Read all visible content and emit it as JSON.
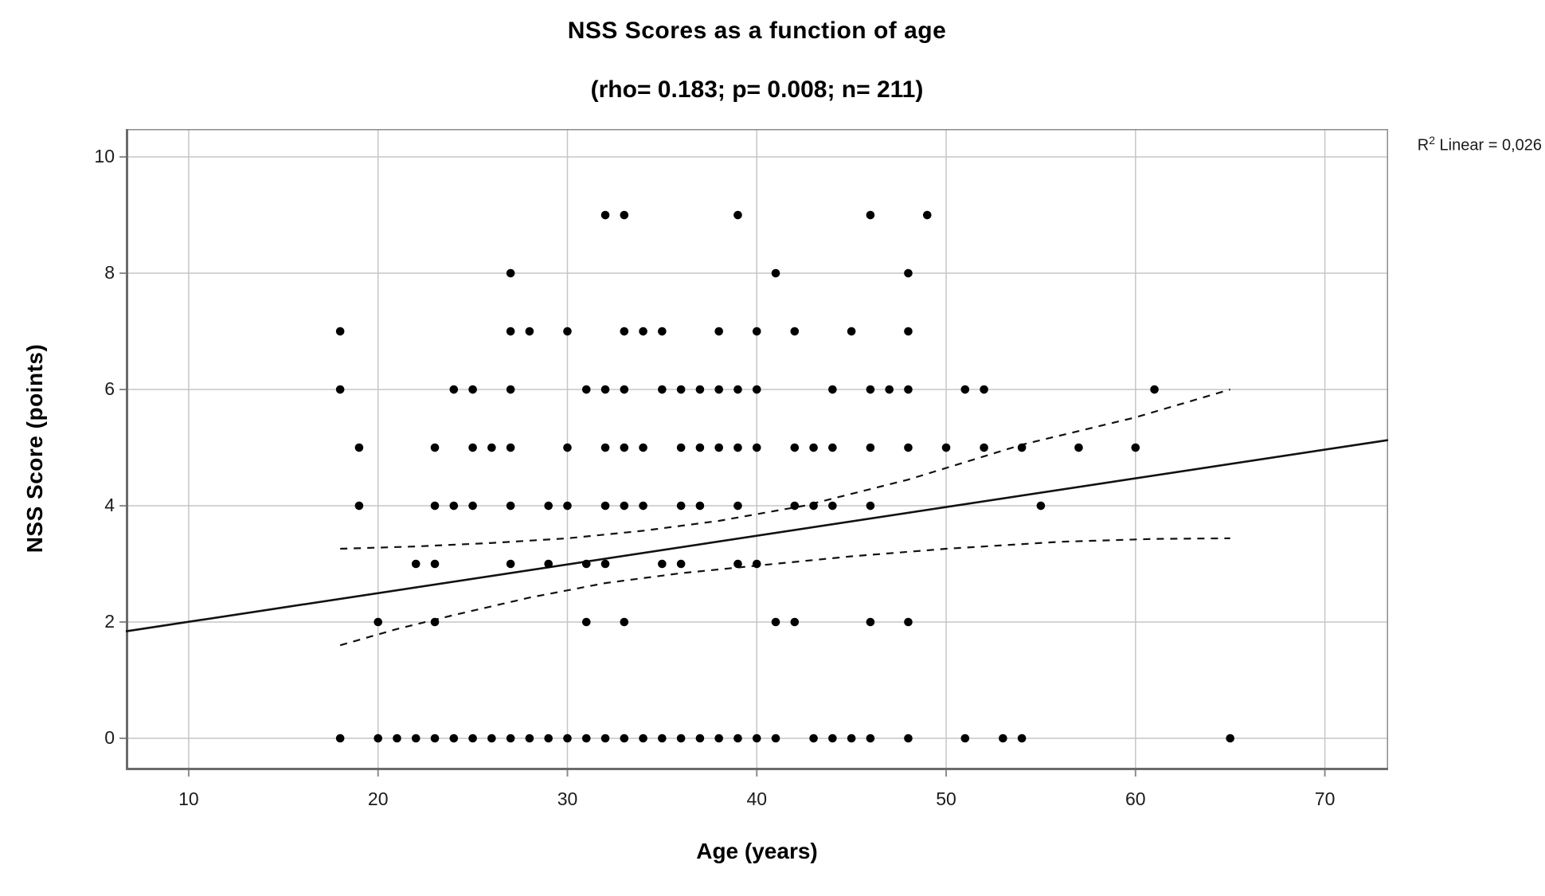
{
  "title": "NSS Scores as a function of age",
  "subtitle": "(rho= 0.183; p= 0.008; n= 211)",
  "annotation": {
    "prefix": "R",
    "sup": "2",
    "rest": " Linear = 0,026"
  },
  "chart_data": {
    "type": "scatter",
    "title": "NSS Scores as a function of age",
    "subtitle": "(rho= 0.183; p= 0.008; n= 211)",
    "xlabel": "Age (years)",
    "ylabel": "NSS Score (points)",
    "x_ticks": [
      10,
      20,
      30,
      40,
      50,
      60,
      70
    ],
    "y_ticks": [
      0,
      2,
      4,
      6,
      8,
      10
    ],
    "xlim": [
      6.68,
      73.34
    ],
    "ylim": [
      -0.548,
      10.48
    ],
    "grid": true,
    "legend": "none",
    "r2_linear": "0,026",
    "marker_color": "#000000",
    "grid_color": "#c6c6c6",
    "frame_color": "#8c8c8c",
    "axis_color": "#6b6b6b",
    "line_color": "#111111",
    "points": [
      [
        32,
        9
      ],
      [
        33,
        9
      ],
      [
        39,
        9
      ],
      [
        46,
        9
      ],
      [
        49,
        9
      ],
      [
        27,
        8
      ],
      [
        41,
        8
      ],
      [
        48,
        8
      ],
      [
        18,
        7
      ],
      [
        27,
        7
      ],
      [
        28,
        7
      ],
      [
        30,
        7
      ],
      [
        33,
        7
      ],
      [
        34,
        7
      ],
      [
        35,
        7
      ],
      [
        38,
        7
      ],
      [
        40,
        7
      ],
      [
        42,
        7
      ],
      [
        45,
        7
      ],
      [
        48,
        7
      ],
      [
        18,
        6
      ],
      [
        24,
        6
      ],
      [
        25,
        6
      ],
      [
        27,
        6
      ],
      [
        31,
        6
      ],
      [
        32,
        6
      ],
      [
        33,
        6
      ],
      [
        35,
        6
      ],
      [
        36,
        6
      ],
      [
        37,
        6
      ],
      [
        38,
        6
      ],
      [
        39,
        6
      ],
      [
        40,
        6
      ],
      [
        44,
        6
      ],
      [
        46,
        6
      ],
      [
        47,
        6
      ],
      [
        48,
        6
      ],
      [
        51,
        6
      ],
      [
        52,
        6
      ],
      [
        61,
        6
      ],
      [
        19,
        5
      ],
      [
        23,
        5
      ],
      [
        25,
        5
      ],
      [
        26,
        5
      ],
      [
        27,
        5
      ],
      [
        30,
        5
      ],
      [
        32,
        5
      ],
      [
        33,
        5
      ],
      [
        34,
        5
      ],
      [
        36,
        5
      ],
      [
        37,
        5
      ],
      [
        38,
        5
      ],
      [
        39,
        5
      ],
      [
        40,
        5
      ],
      [
        42,
        5
      ],
      [
        43,
        5
      ],
      [
        44,
        5
      ],
      [
        46,
        5
      ],
      [
        48,
        5
      ],
      [
        50,
        5
      ],
      [
        52,
        5
      ],
      [
        54,
        5
      ],
      [
        57,
        5
      ],
      [
        60,
        5
      ],
      [
        19,
        4
      ],
      [
        23,
        4
      ],
      [
        24,
        4
      ],
      [
        25,
        4
      ],
      [
        27,
        4
      ],
      [
        29,
        4
      ],
      [
        30,
        4
      ],
      [
        32,
        4
      ],
      [
        33,
        4
      ],
      [
        34,
        4
      ],
      [
        36,
        4
      ],
      [
        37,
        4
      ],
      [
        39,
        4
      ],
      [
        42,
        4
      ],
      [
        43,
        4
      ],
      [
        44,
        4
      ],
      [
        46,
        4
      ],
      [
        55,
        4
      ],
      [
        22,
        3
      ],
      [
        23,
        3
      ],
      [
        27,
        3
      ],
      [
        29,
        3
      ],
      [
        31,
        3
      ],
      [
        32,
        3
      ],
      [
        35,
        3
      ],
      [
        36,
        3
      ],
      [
        39,
        3
      ],
      [
        40,
        3
      ],
      [
        20,
        2
      ],
      [
        23,
        2
      ],
      [
        31,
        2
      ],
      [
        33,
        2
      ],
      [
        41,
        2
      ],
      [
        42,
        2
      ],
      [
        46,
        2
      ],
      [
        48,
        2
      ],
      [
        18,
        0
      ],
      [
        20,
        0
      ],
      [
        21,
        0
      ],
      [
        22,
        0
      ],
      [
        23,
        0
      ],
      [
        24,
        0
      ],
      [
        25,
        0
      ],
      [
        26,
        0
      ],
      [
        27,
        0
      ],
      [
        28,
        0
      ],
      [
        29,
        0
      ],
      [
        30,
        0
      ],
      [
        31,
        0
      ],
      [
        32,
        0
      ],
      [
        33,
        0
      ],
      [
        34,
        0
      ],
      [
        35,
        0
      ],
      [
        36,
        0
      ],
      [
        37,
        0
      ],
      [
        38,
        0
      ],
      [
        39,
        0
      ],
      [
        40,
        0
      ],
      [
        41,
        0
      ],
      [
        43,
        0
      ],
      [
        44,
        0
      ],
      [
        45,
        0
      ],
      [
        46,
        0
      ],
      [
        48,
        0
      ],
      [
        51,
        0
      ],
      [
        53,
        0
      ],
      [
        54,
        0
      ],
      [
        65,
        0
      ]
    ],
    "regression_line": {
      "x": [
        6.68,
        73.34
      ],
      "y": [
        1.84,
        5.13
      ]
    },
    "ci_upper": [
      [
        18,
        3.26
      ],
      [
        22,
        3.3
      ],
      [
        26,
        3.36
      ],
      [
        30,
        3.44
      ],
      [
        34,
        3.57
      ],
      [
        38,
        3.74
      ],
      [
        42.5,
        4.0
      ],
      [
        48,
        4.45
      ],
      [
        54,
        5.05
      ],
      [
        60,
        5.52
      ],
      [
        65,
        6.0
      ]
    ],
    "ci_lower": [
      [
        18,
        1.6
      ],
      [
        21,
        1.88
      ],
      [
        24,
        2.12
      ],
      [
        28,
        2.42
      ],
      [
        32,
        2.67
      ],
      [
        36,
        2.84
      ],
      [
        40,
        2.97
      ],
      [
        45,
        3.13
      ],
      [
        50,
        3.26
      ],
      [
        56,
        3.38
      ],
      [
        61,
        3.43
      ],
      [
        65,
        3.44
      ]
    ]
  }
}
